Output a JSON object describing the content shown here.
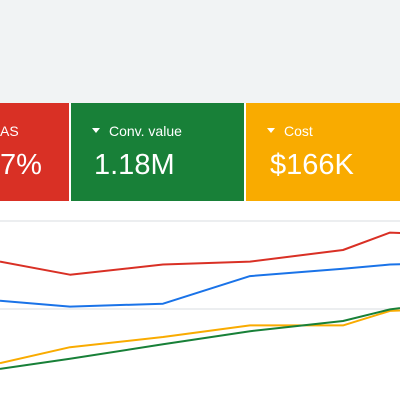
{
  "metrics": [
    {
      "label": "AS",
      "value": "7%",
      "color": "#d93025"
    },
    {
      "label": "Conv. value",
      "value": "1.18M",
      "color": "#188038"
    },
    {
      "label": "Cost",
      "value": "$166K",
      "color": "#f9ab00"
    }
  ],
  "chart_data": {
    "type": "line",
    "x": [
      0,
      1,
      2,
      3,
      4,
      5,
      6
    ],
    "ylim": [
      0,
      100
    ],
    "grid": true,
    "series": [
      {
        "color": "#d93025",
        "values": [
          72,
          63,
          70,
          72,
          80,
          92,
          90
        ]
      },
      {
        "color": "#1a73e8",
        "values": [
          45,
          41,
          43,
          62,
          67,
          70,
          71
        ]
      },
      {
        "color": "#f9ab00",
        "values": [
          2,
          13,
          20,
          28,
          28,
          38,
          40
        ]
      },
      {
        "color": "#188038",
        "values": [
          -2,
          5,
          15,
          24,
          31,
          39,
          45
        ]
      }
    ]
  }
}
